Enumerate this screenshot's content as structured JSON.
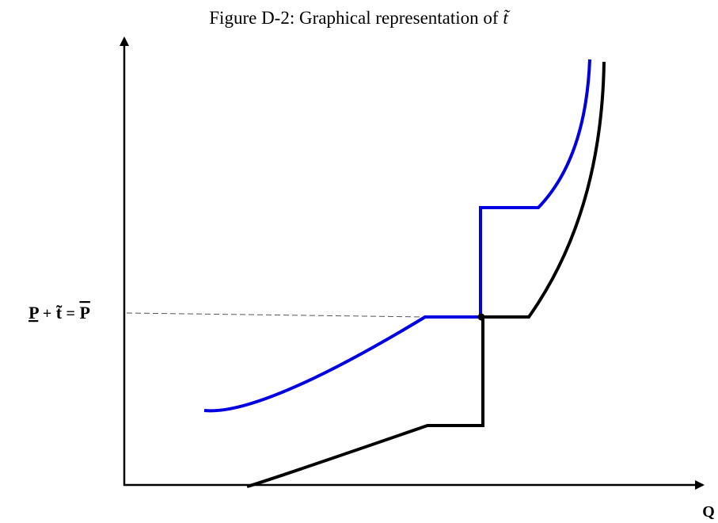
{
  "title": "Figure D-2: Graphical representation of ",
  "title_symbol": "t̃",
  "y_label": {
    "lower": "P",
    "plus": "+",
    "middle": "t̃",
    "equals": "=",
    "upper": "P"
  },
  "x_label": "Q"
}
